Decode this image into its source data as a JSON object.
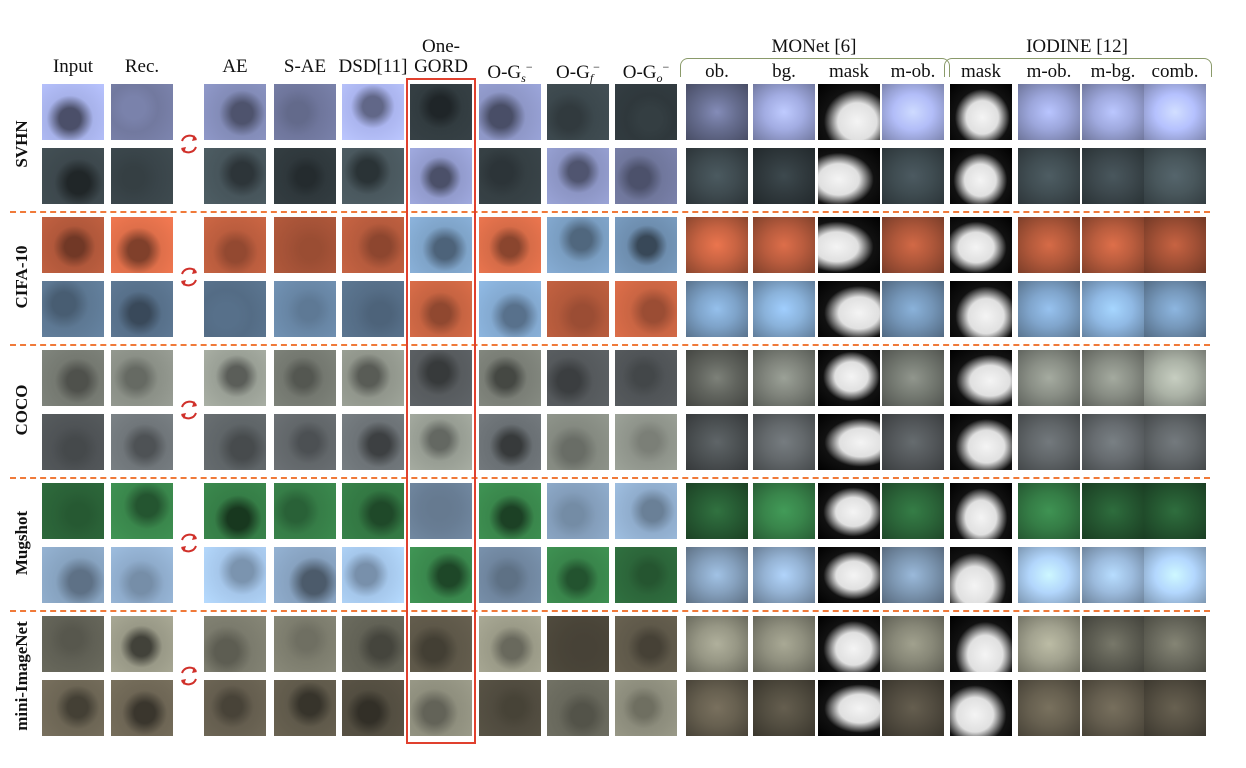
{
  "figure": {
    "column_headers": [
      {
        "id": "input",
        "label": "Input"
      },
      {
        "id": "rec",
        "label": "Rec."
      },
      {
        "id": "ae",
        "label": "AE"
      },
      {
        "id": "sae",
        "label": "S-AE"
      },
      {
        "id": "dsd",
        "label": "DSD[11]"
      },
      {
        "id": "onegord",
        "label": "GORD",
        "top": "One-"
      },
      {
        "id": "ogs",
        "label": "O-G",
        "sub": "s",
        "sup": "−"
      },
      {
        "id": "ogf",
        "label": "O-G",
        "sub": "f",
        "sup": "−"
      },
      {
        "id": "ogo",
        "label": "O-G",
        "sub": "o",
        "sup": "−"
      }
    ],
    "monet": {
      "title": "MONet [6]",
      "columns": [
        "ob.",
        "bg.",
        "mask",
        "m-ob."
      ]
    },
    "iodine": {
      "title": "IODINE [12]",
      "columns": [
        "mask",
        "m-ob.",
        "m-bg.",
        "comb."
      ]
    },
    "rows": [
      {
        "dataset": "SVHN",
        "palette": [
          "#8f98c8",
          "#3e4a4f"
        ]
      },
      {
        "dataset": "CIFA-10",
        "palette": [
          "#b45a3c",
          "#6f8fb0"
        ]
      },
      {
        "dataset": "COCO",
        "palette": [
          "#8a8f86",
          "#5b6063"
        ]
      },
      {
        "dataset": "Mugshot",
        "palette": [
          "#2f6e3e",
          "#8aa6c4"
        ]
      },
      {
        "dataset": "mini-ImageNet",
        "palette": [
          "#7f7f70",
          "#5a5446"
        ]
      }
    ],
    "colors": {
      "separator": "#f07a3a",
      "highlight": "#e0402e",
      "swap_icon": "#d0302a",
      "brace": "#8a9a6a"
    },
    "icons": [
      "swap-arrows-icon"
    ]
  }
}
